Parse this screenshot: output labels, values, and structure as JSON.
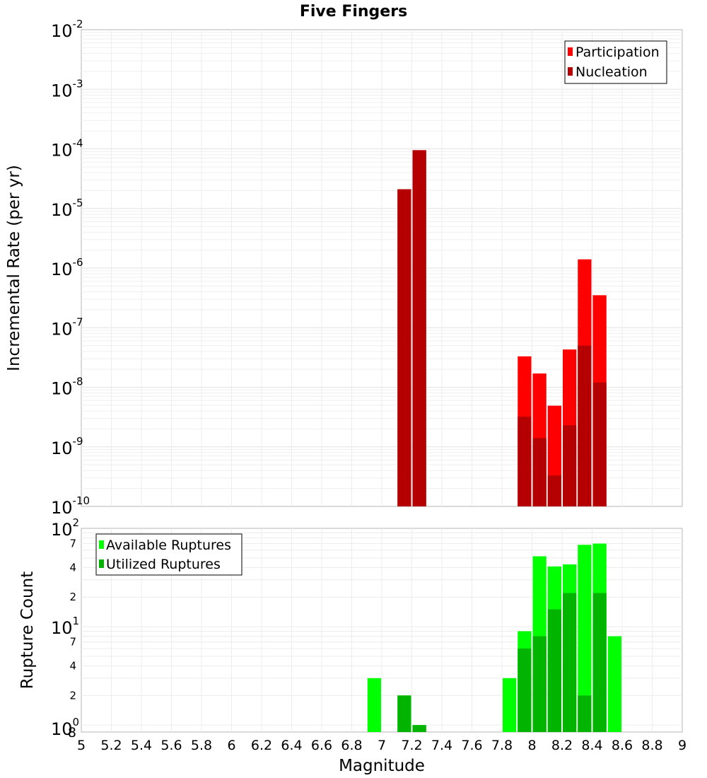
{
  "chart_data": [
    {
      "type": "bar",
      "title": "Five Fingers",
      "xlabel": "",
      "ylabel": "Incremental Rate (per yr)",
      "y_scale": "log",
      "ylim": [
        1e-10,
        0.01
      ],
      "xlim": [
        5,
        9
      ],
      "y_ticks": [
        {
          "base": "10",
          "exp": "-2"
        },
        {
          "base": "10",
          "exp": "-3"
        },
        {
          "base": "10",
          "exp": "-4"
        },
        {
          "base": "10",
          "exp": "-5"
        },
        {
          "base": "10",
          "exp": "-6"
        },
        {
          "base": "10",
          "exp": "-7"
        },
        {
          "base": "10",
          "exp": "-8"
        },
        {
          "base": "10",
          "exp": "-9"
        },
        {
          "base": "10",
          "exp": "-10"
        }
      ],
      "legend_position": "top-right",
      "grid": true,
      "series": [
        {
          "name": "Participation",
          "color": "#ff0000",
          "x": [
            7.15,
            7.25,
            7.95,
            8.05,
            8.15,
            8.25,
            8.35,
            8.45
          ],
          "values": [
            2.1e-05,
            9.5e-05,
            3.3e-08,
            1.7e-08,
            4.9e-09,
            4.3e-08,
            1.4e-06,
            3.5e-07
          ]
        },
        {
          "name": "Nucleation",
          "color": "#b40000",
          "x": [
            7.15,
            7.25,
            7.95,
            8.05,
            8.15,
            8.25,
            8.35,
            8.45
          ],
          "values": [
            2.1e-05,
            9.5e-05,
            3.2e-09,
            1.4e-09,
            3.3e-10,
            2.3e-09,
            5e-08,
            1.2e-08
          ]
        }
      ]
    },
    {
      "type": "bar",
      "title": "",
      "xlabel": "Magnitude",
      "ylabel": "Rupture Count",
      "y_scale": "log",
      "ylim": [
        0.85,
        100
      ],
      "xlim": [
        5,
        9
      ],
      "x_ticks": [
        "5",
        "5.2",
        "5.4",
        "5.6",
        "5.8",
        "6",
        "6.2",
        "6.4",
        "6.6",
        "6.8",
        "7",
        "7.2",
        "7.4",
        "7.6",
        "7.8",
        "8",
        "8.2",
        "8.4",
        "8.6",
        "8.8",
        "9"
      ],
      "y_ticks": [
        {
          "base": "10",
          "exp": "2",
          "value": 100
        },
        {
          "base": "10",
          "exp": "1",
          "value": 10
        },
        {
          "base": "10",
          "exp": "0",
          "value": 1
        }
      ],
      "y_minor_labels": [
        {
          "label": "7",
          "value": 70
        },
        {
          "label": "4",
          "value": 40
        },
        {
          "label": "2",
          "value": 20
        },
        {
          "label": "7",
          "value": 7
        },
        {
          "label": "4",
          "value": 4
        },
        {
          "label": "2",
          "value": 2
        },
        {
          "label": "8",
          "value": 0.8
        }
      ],
      "legend_position": "top-left",
      "grid": true,
      "series": [
        {
          "name": "Available Ruptures",
          "color": "#00ff00",
          "x": [
            6.95,
            7.15,
            7.25,
            7.85,
            7.95,
            8.05,
            8.15,
            8.25,
            8.35,
            8.45,
            8.55
          ],
          "values": [
            3,
            2,
            1,
            3,
            9,
            52,
            41,
            43,
            68,
            70,
            8
          ]
        },
        {
          "name": "Utilized Ruptures",
          "color": "#00b400",
          "x": [
            6.95,
            7.15,
            7.25,
            7.85,
            7.95,
            8.05,
            8.15,
            8.25,
            8.35,
            8.45,
            8.55
          ],
          "values": [
            0,
            2,
            1,
            0,
            6,
            8,
            15,
            22,
            2,
            22,
            0
          ]
        }
      ]
    }
  ]
}
